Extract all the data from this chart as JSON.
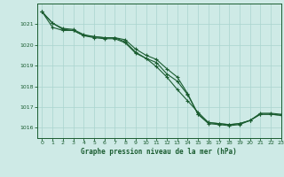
{
  "title": "Graphe pression niveau de la mer (hPa)",
  "background_color": "#ceeae6",
  "grid_color": "#aad4ce",
  "line_color": "#1a5c30",
  "xlim": [
    -0.5,
    23
  ],
  "ylim": [
    1015.5,
    1022.0
  ],
  "yticks": [
    1016,
    1017,
    1018,
    1019,
    1020,
    1021
  ],
  "xticks": [
    0,
    1,
    2,
    3,
    4,
    5,
    6,
    7,
    8,
    9,
    10,
    11,
    12,
    13,
    14,
    15,
    16,
    17,
    18,
    19,
    20,
    21,
    22,
    23
  ],
  "line1": [
    1021.6,
    1021.05,
    1020.75,
    1020.7,
    1020.45,
    1020.4,
    1020.35,
    1020.35,
    1020.15,
    1019.65,
    1019.35,
    1019.15,
    1018.6,
    1018.25,
    1017.6,
    1016.65,
    1016.25,
    1016.2,
    1016.15,
    1016.2,
    1016.35,
    1016.65,
    1016.65,
    1016.6
  ],
  "line2": [
    1021.6,
    1020.85,
    1020.7,
    1020.7,
    1020.45,
    1020.35,
    1020.3,
    1020.3,
    1020.1,
    1019.6,
    1019.35,
    1018.95,
    1018.45,
    1017.85,
    1017.3,
    1016.75,
    1016.25,
    1016.2,
    1016.15,
    1016.2,
    1016.35,
    1016.65,
    1016.65,
    1016.6
  ],
  "line3": [
    1021.6,
    1021.05,
    1020.8,
    1020.75,
    1020.5,
    1020.4,
    1020.35,
    1020.35,
    1020.25,
    1019.8,
    1019.5,
    1019.3,
    1018.85,
    1018.45,
    1017.65,
    1016.65,
    1016.2,
    1016.15,
    1016.1,
    1016.15,
    1016.35,
    1016.7,
    1016.7,
    1016.65
  ]
}
